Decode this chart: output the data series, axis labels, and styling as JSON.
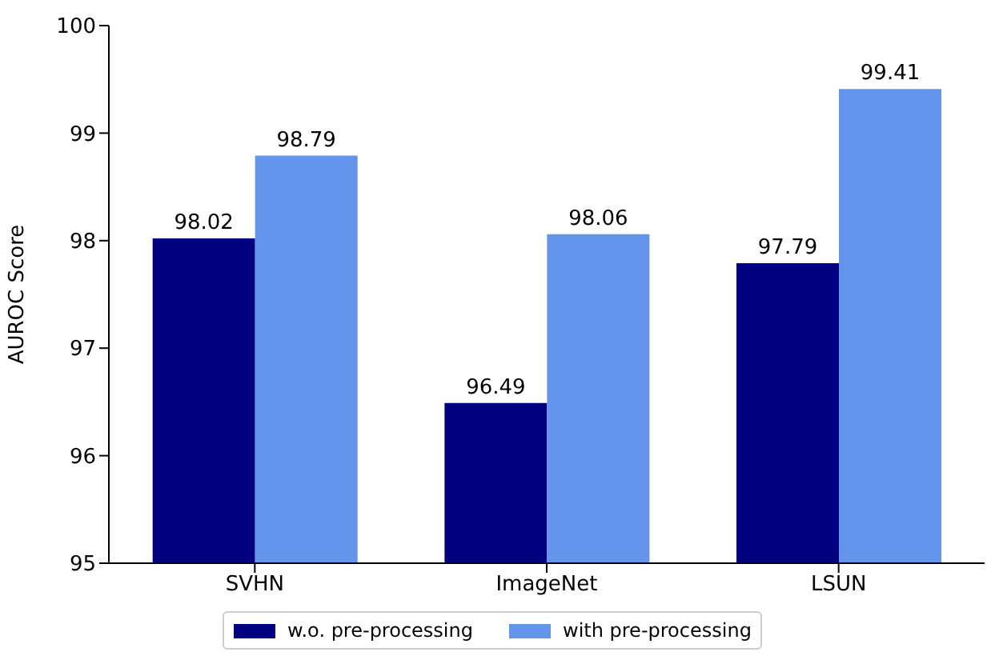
{
  "chart_data": {
    "type": "bar",
    "ylabel": "AUROC Score",
    "categories": [
      "SVHN",
      "ImageNet",
      "LSUN"
    ],
    "series": [
      {
        "name": "w.o. pre-processing",
        "color": "#000080",
        "values": [
          98.02,
          96.49,
          97.79
        ]
      },
      {
        "name": "with pre-processing",
        "color": "#6495ed",
        "values": [
          98.79,
          98.06,
          99.41
        ]
      }
    ],
    "ylim": [
      95,
      100
    ],
    "yticks": [
      95,
      96,
      97,
      98,
      99,
      100
    ],
    "data_labels": true,
    "legend": "bottom",
    "grid": false
  }
}
